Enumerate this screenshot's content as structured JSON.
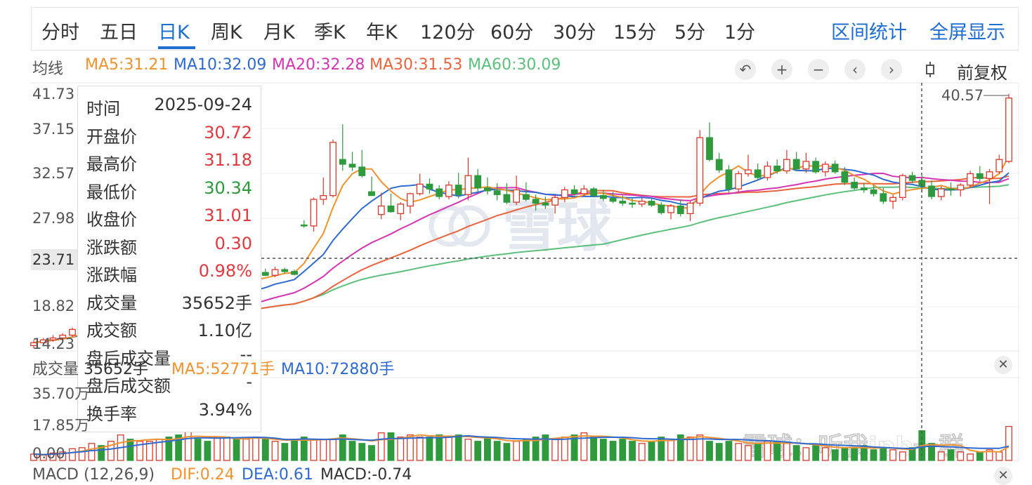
{
  "tabs": [
    {
      "label": "分时",
      "active": false
    },
    {
      "label": "五日",
      "active": false
    },
    {
      "label": "日K",
      "active": true
    },
    {
      "label": "周K",
      "active": false
    },
    {
      "label": "月K",
      "active": false
    },
    {
      "label": "季K",
      "active": false
    },
    {
      "label": "年K",
      "active": false
    },
    {
      "label": "120分",
      "active": false
    },
    {
      "label": "60分",
      "active": false
    },
    {
      "label": "30分",
      "active": false
    },
    {
      "label": "15分",
      "active": false
    },
    {
      "label": "5分",
      "active": false
    },
    {
      "label": "1分",
      "active": false
    }
  ],
  "actions": {
    "range_stats": "区间统计",
    "fullscreen": "全屏显示"
  },
  "ma_legend": {
    "label": "均线",
    "items": [
      {
        "text": "MA5:31.21",
        "color": "#f0922e"
      },
      {
        "text": "MA10:32.09",
        "color": "#2f6ad1"
      },
      {
        "text": "MA20:32.28",
        "color": "#d535b5"
      },
      {
        "text": "MA30:31.53",
        "color": "#e9643c"
      },
      {
        "text": "MA60:30.09",
        "color": "#5cc07c"
      }
    ]
  },
  "controls": {
    "icons": [
      "undo-icon",
      "zoom-in-icon",
      "zoom-out-icon",
      "chevron-left-icon",
      "chevron-right-icon",
      "candle-icon"
    ],
    "adjust_label": "前复权"
  },
  "price_axis": {
    "ticks": [
      "41.73",
      "37.15",
      "32.57",
      "27.98",
      "23.71",
      "18.82",
      "14.23"
    ],
    "highlight": "23.71"
  },
  "max_label": "40.57",
  "tooltip": {
    "rows": [
      {
        "label": "时间",
        "value": "2025-09-24",
        "color": "#333333"
      },
      {
        "label": "开盘价",
        "value": "30.72",
        "color": "#e0393e"
      },
      {
        "label": "最高价",
        "value": "31.18",
        "color": "#e0393e"
      },
      {
        "label": "最低价",
        "value": "30.34",
        "color": "#2e9a3d"
      },
      {
        "label": "收盘价",
        "value": "31.01",
        "color": "#e0393e"
      },
      {
        "label": "涨跌额",
        "value": "0.30",
        "color": "#e0393e"
      },
      {
        "label": "涨跌幅",
        "value": "0.98%",
        "color": "#e0393e"
      },
      {
        "label": "成交量",
        "value": "35652手",
        "color": "#333333"
      },
      {
        "label": "成交额",
        "value": "1.10亿",
        "color": "#333333"
      },
      {
        "label": "盘后成交量",
        "value": "--",
        "color": "#333333"
      },
      {
        "label": "盘后成交额",
        "value": "-",
        "color": "#333333"
      },
      {
        "label": "换手率",
        "value": "3.94%",
        "color": "#333333"
      }
    ]
  },
  "volume_legend": {
    "label": "成交量",
    "value": "35652手",
    "ma5": "MA5:52771手",
    "ma10": "MA10:72880手",
    "ma5_color": "#f0922e",
    "ma10_color": "#2f6ad1"
  },
  "volume_axis": {
    "ticks": [
      "35.70万",
      "17.85万",
      "0.00"
    ]
  },
  "macd_legend": {
    "label": "MACD (12,26,9)",
    "dif": "DIF:0.24",
    "dea": "DEA:0.61",
    "macd": "MACD:-0.74",
    "dif_color": "#f0922e",
    "dea_color": "#2f6ad1",
    "macd_color": "#333333"
  },
  "watermark": {
    "logo": "雪球",
    "credit": "雪球：听我jpb一群"
  },
  "colors": {
    "up": "#d9392c",
    "down": "#2e9a3d",
    "accent": "#1f6fd1",
    "ma60": "#5cc07c"
  },
  "chart_data": {
    "type": "candlestick",
    "y_unit": "price",
    "ylim": [
      14.23,
      41.73
    ],
    "candles": [
      [
        14.5,
        15.1,
        14.2,
        14.8
      ],
      [
        14.8,
        15.3,
        14.6,
        15.1
      ],
      [
        15.1,
        15.6,
        14.9,
        15.3
      ],
      [
        15.3,
        15.8,
        15.0,
        15.6
      ],
      [
        15.6,
        16.4,
        15.4,
        16.2
      ],
      [
        16.2,
        16.8,
        15.9,
        16.5
      ],
      [
        16.5,
        17.4,
        16.3,
        17.2
      ],
      [
        17.2,
        17.6,
        16.6,
        16.8
      ],
      [
        16.8,
        17.8,
        16.7,
        17.6
      ],
      [
        17.6,
        18.2,
        17.2,
        17.9
      ],
      [
        17.9,
        18.4,
        17.4,
        17.7
      ],
      [
        17.7,
        18.6,
        17.5,
        18.3
      ],
      [
        18.3,
        19.1,
        18.1,
        18.7
      ],
      [
        18.7,
        19.5,
        18.5,
        19.3
      ],
      [
        19.3,
        19.8,
        18.9,
        19.1
      ],
      [
        19.1,
        19.7,
        18.6,
        18.8
      ],
      [
        18.8,
        20.2,
        18.6,
        20.0
      ],
      [
        20.0,
        20.4,
        19.3,
        19.5
      ],
      [
        19.5,
        20.0,
        18.4,
        18.6
      ],
      [
        18.6,
        21.2,
        18.3,
        21.0
      ],
      [
        21.0,
        21.5,
        20.8,
        21.3
      ],
      [
        21.3,
        21.7,
        20.9,
        21.1
      ],
      [
        21.1,
        21.8,
        21.0,
        21.6
      ],
      [
        21.6,
        22.4,
        21.4,
        22.2
      ],
      [
        22.2,
        22.6,
        21.8,
        21.9
      ],
      [
        21.9,
        22.8,
        21.7,
        22.5
      ],
      [
        22.5,
        22.7,
        22.1,
        22.3
      ],
      [
        22.3,
        22.5,
        21.9,
        22.0
      ],
      [
        27.2,
        27.7,
        26.9,
        27.1
      ],
      [
        27.1,
        30.1,
        26.5,
        29.9
      ],
      [
        29.9,
        32.2,
        29.3,
        30.3
      ],
      [
        30.3,
        36.2,
        30.1,
        35.9
      ],
      [
        34.1,
        37.8,
        32.9,
        33.6
      ],
      [
        33.6,
        34.9,
        32.9,
        33.3
      ],
      [
        33.3,
        35.1,
        32.2,
        32.4
      ],
      [
        30.7,
        32.3,
        30.3,
        30.3
      ],
      [
        28.3,
        30.6,
        27.8,
        29.2
      ],
      [
        29.2,
        30.5,
        28.5,
        28.6
      ],
      [
        28.4,
        29.6,
        27.7,
        29.4
      ],
      [
        29.2,
        30.6,
        28.4,
        30.5
      ],
      [
        30.5,
        32.6,
        30.3,
        31.5
      ],
      [
        31.5,
        32.1,
        30.5,
        31.0
      ],
      [
        31.0,
        31.4,
        29.9,
        30.2
      ],
      [
        30.2,
        31.8,
        29.9,
        31.4
      ],
      [
        31.4,
        32.7,
        30.0,
        30.4
      ],
      [
        30.4,
        34.3,
        29.8,
        32.4
      ],
      [
        32.4,
        33.1,
        30.7,
        31.1
      ],
      [
        31.1,
        32.2,
        30.4,
        30.8
      ],
      [
        30.8,
        31.6,
        29.8,
        30.4
      ],
      [
        30.4,
        31.6,
        29.4,
        29.6
      ],
      [
        29.6,
        32.4,
        29.3,
        30.9
      ],
      [
        30.4,
        31.7,
        29.7,
        29.9
      ],
      [
        29.9,
        30.4,
        28.7,
        29.5
      ],
      [
        29.5,
        30.2,
        28.9,
        29.3
      ],
      [
        29.3,
        30.3,
        28.4,
        30.1
      ],
      [
        30.1,
        31.2,
        29.6,
        30.9
      ],
      [
        30.9,
        31.4,
        30.3,
        30.5
      ],
      [
        30.5,
        31.4,
        30.2,
        31.0
      ],
      [
        31.0,
        31.2,
        30.1,
        30.3
      ],
      [
        30.3,
        30.9,
        29.7,
        30.0
      ],
      [
        30.0,
        30.7,
        29.5,
        29.7
      ],
      [
        29.7,
        30.3,
        29.2,
        29.5
      ],
      [
        29.5,
        30.0,
        29.0,
        29.4
      ],
      [
        29.4,
        30.1,
        29.1,
        29.7
      ],
      [
        29.7,
        30.0,
        29.1,
        29.3
      ],
      [
        29.3,
        29.6,
        28.3,
        28.5
      ],
      [
        28.5,
        29.4,
        27.8,
        29.2
      ],
      [
        29.2,
        29.9,
        28.1,
        28.4
      ],
      [
        28.4,
        29.7,
        27.6,
        29.5
      ],
      [
        29.5,
        37.2,
        29.2,
        36.4
      ],
      [
        36.4,
        38.0,
        33.9,
        34.1
      ],
      [
        34.1,
        34.8,
        32.7,
        33.0
      ],
      [
        33.0,
        33.5,
        30.6,
        31.0
      ],
      [
        31.0,
        32.9,
        30.6,
        32.6
      ],
      [
        32.6,
        34.6,
        32.3,
        33.0
      ],
      [
        33.0,
        33.7,
        31.9,
        32.2
      ],
      [
        32.2,
        33.9,
        31.9,
        33.4
      ],
      [
        33.4,
        34.1,
        32.6,
        32.9
      ],
      [
        32.9,
        35.1,
        32.6,
        34.1
      ],
      [
        34.1,
        34.9,
        32.9,
        33.1
      ],
      [
        33.1,
        34.8,
        32.7,
        33.9
      ],
      [
        33.9,
        34.3,
        32.6,
        32.8
      ],
      [
        32.8,
        33.9,
        32.3,
        33.6
      ],
      [
        33.6,
        34.0,
        32.6,
        32.8
      ],
      [
        32.8,
        33.3,
        31.4,
        31.7
      ],
      [
        31.7,
        32.2,
        30.9,
        31.1
      ],
      [
        31.1,
        31.6,
        30.6,
        30.9
      ],
      [
        30.9,
        31.4,
        30.2,
        30.5
      ],
      [
        30.5,
        31.1,
        29.4,
        29.7
      ],
      [
        29.7,
        30.4,
        28.9,
        30.1
      ],
      [
        30.1,
        32.6,
        29.8,
        32.4
      ],
      [
        32.4,
        32.8,
        31.6,
        31.9
      ],
      [
        31.9,
        32.4,
        30.6,
        31.3
      ],
      [
        31.3,
        31.9,
        29.9,
        30.2
      ],
      [
        30.2,
        31.3,
        29.8,
        31.0
      ],
      [
        31.0,
        31.7,
        30.3,
        30.9
      ],
      [
        30.9,
        31.6,
        30.2,
        31.4
      ],
      [
        31.4,
        32.9,
        31.1,
        32.6
      ],
      [
        32.6,
        33.4,
        31.8,
        32.1
      ],
      [
        32.1,
        33.1,
        29.4,
        32.8
      ],
      [
        32.8,
        34.6,
        32.6,
        34.1
      ],
      [
        33.9,
        41.0,
        33.7,
        40.57
      ]
    ],
    "volume_ylim_wan": [
      0,
      35.7
    ],
    "volume_wan": [
      3.0,
      2.5,
      3.5,
      4.0,
      5.5,
      6.0,
      8.0,
      7.0,
      9.0,
      12.0,
      10.0,
      9.0,
      9.0,
      10.0,
      11.0,
      12.0,
      14.0,
      10.0,
      9.0,
      11.0,
      11.0,
      10.0,
      10.0,
      11.0,
      10.0,
      9.0,
      8.0,
      10.0,
      11.0,
      10.0,
      10.0,
      10.0,
      12.0,
      9.0,
      8.0,
      7.0,
      13.0,
      13.0,
      11.0,
      12.0,
      11.0,
      11.0,
      12.0,
      11.0,
      12.0,
      10.0,
      9.0,
      11.0,
      9.0,
      8.0,
      9.0,
      10.0,
      11.0,
      12.0,
      10.0,
      11.0,
      12.0,
      13.0,
      11.0,
      10.0,
      9.0,
      10.0,
      9.0,
      8.0,
      9.0,
      11.0,
      10.0,
      12.0,
      11.0,
      12.0,
      9.0,
      8.0,
      9.0,
      8.0,
      7.0,
      8.0,
      9.0,
      9.0,
      8.0,
      7.0,
      6.0,
      7.0,
      6.0,
      5.0,
      6.0,
      6.0,
      7.0,
      5.0,
      6.0,
      5.0,
      4.0,
      6.0,
      14.0,
      8.0,
      4.0,
      5.0,
      4.0,
      3.0,
      4.0,
      5.0,
      4.0,
      16.0
    ]
  }
}
